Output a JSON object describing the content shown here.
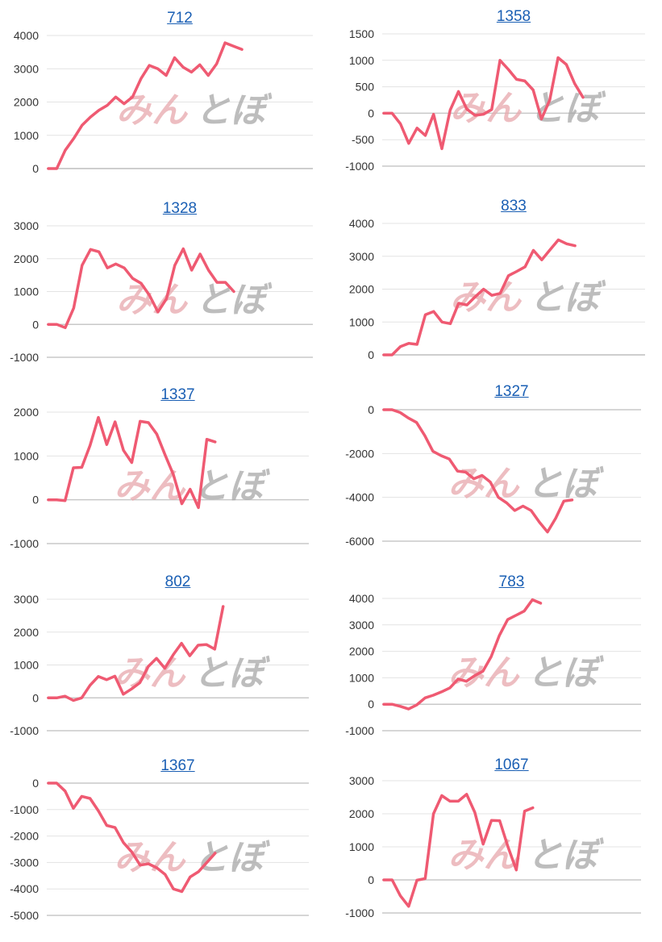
{
  "colors": {
    "line": "#ef5a72",
    "grid": "#e3e3e3",
    "baseline": "#c8c8c8",
    "title": "#1a5fb4"
  },
  "watermark": {
    "part1": "みん",
    "part2": "とぼ"
  },
  "chart_data": [
    {
      "type": "line",
      "title": "712",
      "ylim": [
        0,
        4000
      ],
      "yticks": [
        0,
        1000,
        2000,
        3000,
        4000
      ],
      "grid": true,
      "series": [
        {
          "values": [
            0,
            0,
            550,
            900,
            1300,
            1550,
            1750,
            1900,
            2150,
            1950,
            2150,
            2700,
            3100,
            3000,
            2800,
            3330,
            3050,
            2900,
            3120,
            2800,
            3150,
            3780,
            3680,
            3580
          ]
        }
      ]
    },
    {
      "type": "line",
      "title": "1358",
      "ylim": [
        -1000,
        1500
      ],
      "yticks": [
        -1000,
        -500,
        0,
        500,
        1000,
        1500
      ],
      "grid": true,
      "series": [
        {
          "values": [
            0,
            0,
            -200,
            -570,
            -280,
            -420,
            -20,
            -670,
            60,
            410,
            80,
            -40,
            -20,
            70,
            1000,
            830,
            640,
            610,
            440,
            -110,
            250,
            1050,
            920,
            560,
            300
          ]
        }
      ]
    },
    {
      "type": "line",
      "title": "1328",
      "ylim": [
        -1000,
        3000
      ],
      "yticks": [
        -1000,
        0,
        1000,
        2000,
        3000
      ],
      "grid": true,
      "series": [
        {
          "values": [
            0,
            0,
            -100,
            500,
            1800,
            2280,
            2210,
            1720,
            1840,
            1720,
            1400,
            1250,
            880,
            380,
            780,
            1800,
            2300,
            1650,
            2140,
            1650,
            1280,
            1280,
            1000
          ]
        }
      ]
    },
    {
      "type": "line",
      "title": "833",
      "ylim": [
        0,
        4000
      ],
      "yticks": [
        0,
        1000,
        2000,
        3000,
        4000
      ],
      "grid": true,
      "series": [
        {
          "values": [
            0,
            0,
            250,
            350,
            320,
            1220,
            1320,
            1000,
            950,
            1570,
            1520,
            1770,
            2000,
            1810,
            1870,
            2410,
            2540,
            2680,
            3180,
            2890,
            3200,
            3500,
            3380,
            3320
          ]
        }
      ]
    },
    {
      "type": "line",
      "title": "1337",
      "ylim": [
        -1000,
        2000
      ],
      "yticks": [
        -1000,
        0,
        1000,
        2000
      ],
      "grid": true,
      "series": [
        {
          "values": [
            0,
            0,
            -20,
            730,
            740,
            1240,
            1880,
            1260,
            1780,
            1130,
            850,
            1790,
            1760,
            1500,
            1020,
            570,
            -90,
            240,
            -180,
            1380,
            1320
          ]
        }
      ]
    },
    {
      "type": "line",
      "title": "1327",
      "ylim": [
        -6000,
        0
      ],
      "yticks": [
        -6000,
        -4000,
        -2000,
        0
      ],
      "grid": true,
      "series": [
        {
          "values": [
            0,
            0,
            -130,
            -380,
            -580,
            -1180,
            -1900,
            -2100,
            -2250,
            -2800,
            -2850,
            -3150,
            -3000,
            -3300,
            -4000,
            -4250,
            -4600,
            -4400,
            -4600,
            -5130,
            -5580,
            -4950,
            -4170,
            -4120
          ]
        }
      ]
    },
    {
      "type": "line",
      "title": "802",
      "ylim": [
        -1000,
        3000
      ],
      "yticks": [
        -1000,
        0,
        1000,
        2000,
        3000
      ],
      "grid": true,
      "series": [
        {
          "values": [
            0,
            0,
            50,
            -80,
            0,
            380,
            650,
            550,
            660,
            110,
            270,
            460,
            950,
            1200,
            900,
            1310,
            1660,
            1280,
            1600,
            1620,
            1480,
            2780
          ]
        }
      ]
    },
    {
      "type": "line",
      "title": "783",
      "ylim": [
        -1000,
        4000
      ],
      "yticks": [
        -1000,
        0,
        1000,
        2000,
        3000,
        4000
      ],
      "grid": true,
      "series": [
        {
          "values": [
            0,
            0,
            -80,
            -180,
            -20,
            240,
            340,
            470,
            620,
            950,
            870,
            1080,
            1250,
            1800,
            2600,
            3200,
            3360,
            3520,
            3950,
            3820
          ]
        }
      ]
    },
    {
      "type": "line",
      "title": "1367",
      "ylim": [
        -5000,
        0
      ],
      "yticks": [
        -5000,
        -4000,
        -3000,
        -2000,
        -1000,
        0
      ],
      "grid": true,
      "series": [
        {
          "values": [
            0,
            0,
            -300,
            -950,
            -500,
            -580,
            -1050,
            -1600,
            -1680,
            -2250,
            -2600,
            -3100,
            -3050,
            -3200,
            -3450,
            -4000,
            -4100,
            -3550,
            -3350,
            -3000,
            -2650
          ]
        }
      ]
    },
    {
      "type": "line",
      "title": "1067",
      "ylim": [
        -1000,
        3000
      ],
      "yticks": [
        -1000,
        0,
        1000,
        2000,
        3000
      ],
      "grid": true,
      "series": [
        {
          "values": [
            0,
            0,
            -480,
            -800,
            -10,
            40,
            2000,
            2550,
            2380,
            2380,
            2590,
            2040,
            1080,
            1800,
            1790,
            1000,
            300,
            2080,
            2180
          ]
        }
      ]
    }
  ]
}
